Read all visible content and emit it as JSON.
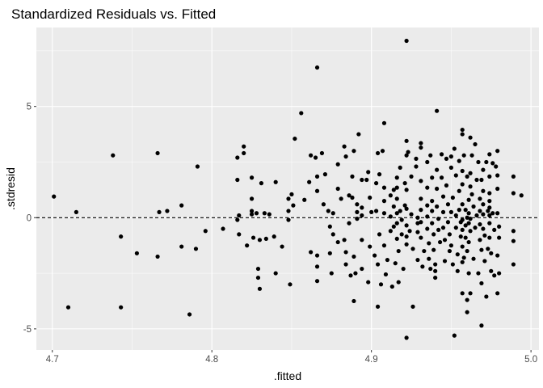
{
  "chart_data": {
    "type": "scatter",
    "title": "Standardized Residuals vs. Fitted",
    "xlabel": ".fitted",
    "ylabel": ".stdresid",
    "xlim": [
      4.69,
      5.005
    ],
    "ylim": [
      -5.95,
      8.55
    ],
    "x_ticks": [
      4.7,
      4.8,
      4.9,
      5.0
    ],
    "x_tick_labels": [
      "4.7",
      "4.8",
      "4.9",
      "5.0"
    ],
    "x_minor_ticks": [
      4.75,
      4.85,
      4.95
    ],
    "y_ticks": [
      -5,
      0,
      5
    ],
    "y_tick_labels": [
      "-5",
      "0",
      "5"
    ],
    "y_minor_ticks": [
      -2.5,
      2.5,
      7.5
    ],
    "reference_line": {
      "y": 0,
      "style": "dashed"
    },
    "grid": true,
    "background": "#ebebeb",
    "point_color": "#000000",
    "points": [
      [
        4.701,
        0.95
      ],
      [
        4.71,
        -4.03
      ],
      [
        4.715,
        0.25
      ],
      [
        4.738,
        2.8
      ],
      [
        4.743,
        -0.85
      ],
      [
        4.743,
        -4.03
      ],
      [
        4.753,
        -1.6
      ],
      [
        4.766,
        -1.75
      ],
      [
        4.766,
        2.9
      ],
      [
        4.767,
        0.25
      ],
      [
        4.772,
        0.3
      ],
      [
        4.781,
        0.55
      ],
      [
        4.781,
        -1.3
      ],
      [
        4.786,
        -4.35
      ],
      [
        4.79,
        -1.4
      ],
      [
        4.791,
        2.3
      ],
      [
        4.796,
        -0.6
      ],
      [
        4.807,
        -0.5
      ],
      [
        4.816,
        2.7
      ],
      [
        4.816,
        1.7
      ],
      [
        4.816,
        -0.1
      ],
      [
        4.817,
        0.1
      ],
      [
        4.817,
        -0.75
      ],
      [
        4.82,
        3.2
      ],
      [
        4.82,
        2.9
      ],
      [
        4.822,
        -1.25
      ],
      [
        4.825,
        1.8
      ],
      [
        4.825,
        0.85
      ],
      [
        4.825,
        0.3
      ],
      [
        4.825,
        0.15
      ],
      [
        4.826,
        -0.9
      ],
      [
        4.828,
        0.2
      ],
      [
        4.829,
        -2.3
      ],
      [
        4.829,
        -2.7
      ],
      [
        4.83,
        -3.2
      ],
      [
        4.83,
        -1.0
      ],
      [
        4.831,
        1.55
      ],
      [
        4.833,
        0.2
      ],
      [
        4.834,
        -0.95
      ],
      [
        4.836,
        0.15
      ],
      [
        4.839,
        -0.85
      ],
      [
        4.84,
        -2.5
      ],
      [
        4.84,
        1.6
      ],
      [
        4.844,
        -1.3
      ],
      [
        4.848,
        0.85
      ],
      [
        4.848,
        0.3
      ],
      [
        4.848,
        -0.1
      ],
      [
        4.849,
        -3.0
      ],
      [
        4.85,
        1.05
      ],
      [
        4.851,
        0.55
      ],
      [
        4.852,
        3.55
      ],
      [
        4.856,
        4.7
      ],
      [
        4.858,
        0.8
      ],
      [
        4.861,
        1.6
      ],
      [
        4.862,
        2.8
      ],
      [
        4.862,
        -1.55
      ],
      [
        4.865,
        2.7
      ],
      [
        4.866,
        6.75
      ],
      [
        4.866,
        1.85
      ],
      [
        4.866,
        1.2
      ],
      [
        4.866,
        -1.7
      ],
      [
        4.866,
        -2.2
      ],
      [
        4.866,
        -2.85
      ],
      [
        4.869,
        2.9
      ],
      [
        4.87,
        0.6
      ],
      [
        4.871,
        1.95
      ],
      [
        4.873,
        0.3
      ],
      [
        4.874,
        -0.4
      ],
      [
        4.874,
        -1.6
      ],
      [
        4.875,
        -2.5
      ],
      [
        4.876,
        0.2
      ],
      [
        4.876,
        -0.75
      ],
      [
        4.879,
        2.4
      ],
      [
        4.879,
        1.3
      ],
      [
        4.879,
        -1.1
      ],
      [
        4.881,
        0.85
      ],
      [
        4.883,
        -1.0
      ],
      [
        4.883,
        3.2
      ],
      [
        4.884,
        2.75
      ],
      [
        4.884,
        -1.55
      ],
      [
        4.884,
        -2.1
      ],
      [
        4.886,
        1.0
      ],
      [
        4.886,
        -0.25
      ],
      [
        4.887,
        -2.6
      ],
      [
        4.888,
        1.85
      ],
      [
        4.888,
        0.9
      ],
      [
        4.889,
        3.0
      ],
      [
        4.889,
        -1.75
      ],
      [
        4.889,
        -3.75
      ],
      [
        4.89,
        -2.5
      ],
      [
        4.891,
        0.6
      ],
      [
        4.891,
        -0.05
      ],
      [
        4.891,
        0.25
      ],
      [
        4.892,
        3.75
      ],
      [
        4.894,
        1.7
      ],
      [
        4.894,
        0.1
      ],
      [
        4.894,
        -1.0
      ],
      [
        4.894,
        -2.3
      ],
      [
        4.894,
        0.45
      ],
      [
        4.897,
        1.7
      ],
      [
        4.898,
        2.05
      ],
      [
        4.898,
        -2.9
      ],
      [
        4.899,
        0.9
      ],
      [
        4.899,
        -1.3
      ],
      [
        4.9,
        0.25
      ],
      [
        4.902,
        -1.7
      ],
      [
        4.903,
        1.55
      ],
      [
        4.903,
        0.3
      ],
      [
        4.904,
        2.9
      ],
      [
        4.904,
        -2.1
      ],
      [
        4.904,
        -4.0
      ],
      [
        4.905,
        1.95
      ],
      [
        4.905,
        -0.75
      ],
      [
        4.906,
        -3.0
      ],
      [
        4.907,
        3.0
      ],
      [
        4.908,
        4.25
      ],
      [
        4.908,
        1.35
      ],
      [
        4.908,
        0.75
      ],
      [
        4.908,
        0.2
      ],
      [
        4.908,
        -1.25
      ],
      [
        4.909,
        -2.55
      ],
      [
        4.91,
        -1.9
      ],
      [
        4.912,
        1.0
      ],
      [
        4.912,
        0.05
      ],
      [
        4.912,
        -0.6
      ],
      [
        4.913,
        -3.1
      ],
      [
        4.914,
        1.25
      ],
      [
        4.914,
        0.5
      ],
      [
        4.914,
        -0.4
      ],
      [
        4.915,
        -2.05
      ],
      [
        4.916,
        1.8
      ],
      [
        4.916,
        1.35
      ],
      [
        4.916,
        0.85
      ],
      [
        4.916,
        0.2
      ],
      [
        4.916,
        -0.25
      ],
      [
        4.916,
        -0.95
      ],
      [
        4.917,
        -1.5
      ],
      [
        4.917,
        -2.9
      ],
      [
        4.918,
        2.25
      ],
      [
        4.918,
        0.3
      ],
      [
        4.919,
        -0.1
      ],
      [
        4.919,
        -0.75
      ],
      [
        4.92,
        -2.3
      ],
      [
        4.921,
        1.55
      ],
      [
        4.921,
        0.55
      ],
      [
        4.922,
        7.95
      ],
      [
        4.922,
        3.45
      ],
      [
        4.922,
        2.8
      ],
      [
        4.922,
        1.25
      ],
      [
        4.922,
        0.4
      ],
      [
        4.922,
        -0.35
      ],
      [
        4.922,
        -0.85
      ],
      [
        4.922,
        -1.2
      ],
      [
        4.922,
        -5.4
      ],
      [
        4.923,
        2.95
      ],
      [
        4.924,
        -0.6
      ],
      [
        4.925,
        1.85
      ],
      [
        4.925,
        0.15
      ],
      [
        4.926,
        -1.4
      ],
      [
        4.926,
        -4.0
      ],
      [
        4.928,
        2.65
      ],
      [
        4.928,
        2.3
      ],
      [
        4.929,
        0.0
      ],
      [
        4.929,
        -0.25
      ],
      [
        4.929,
        -0.65
      ],
      [
        4.929,
        -1.9
      ],
      [
        4.931,
        3.35
      ],
      [
        4.931,
        3.15
      ],
      [
        4.931,
        1.65
      ],
      [
        4.931,
        0.85
      ],
      [
        4.931,
        0.35
      ],
      [
        4.931,
        -0.2
      ],
      [
        4.931,
        -0.9
      ],
      [
        4.932,
        -2.2
      ],
      [
        4.933,
        -1.5
      ],
      [
        4.935,
        2.5
      ],
      [
        4.935,
        1.35
      ],
      [
        4.935,
        0.55
      ],
      [
        4.935,
        0.05
      ],
      [
        4.935,
        -0.5
      ],
      [
        4.936,
        -1.15
      ],
      [
        4.936,
        -1.85
      ],
      [
        4.937,
        -2.3
      ],
      [
        4.937,
        2.8
      ],
      [
        4.938,
        1.8
      ],
      [
        4.938,
        0.75
      ],
      [
        4.938,
        0.3
      ],
      [
        4.938,
        -0.25
      ],
      [
        4.939,
        -0.75
      ],
      [
        4.939,
        -1.45
      ],
      [
        4.94,
        -2.1
      ],
      [
        4.94,
        -2.4
      ],
      [
        4.94,
        -2.7
      ],
      [
        4.941,
        4.8
      ],
      [
        4.941,
        2.15
      ],
      [
        4.941,
        1.3
      ],
      [
        4.941,
        0.5
      ],
      [
        4.942,
        -0.05
      ],
      [
        4.942,
        -0.55
      ],
      [
        4.943,
        -1.1
      ],
      [
        4.944,
        2.85
      ],
      [
        4.944,
        1.8
      ],
      [
        4.945,
        0.95
      ],
      [
        4.945,
        0.25
      ],
      [
        4.945,
        -0.45
      ],
      [
        4.946,
        -1.0
      ],
      [
        4.946,
        -1.95
      ],
      [
        4.947,
        2.65
      ],
      [
        4.947,
        1.45
      ],
      [
        4.948,
        0.6
      ],
      [
        4.948,
        -0.2
      ],
      [
        4.949,
        -0.75
      ],
      [
        4.949,
        -1.5
      ],
      [
        4.95,
        2.75
      ],
      [
        4.95,
        2.25
      ],
      [
        4.95,
        0.25
      ],
      [
        4.95,
        -1.25
      ],
      [
        4.951,
        -2.1
      ],
      [
        4.951,
        0.9
      ],
      [
        4.952,
        3.1
      ],
      [
        4.952,
        -5.3
      ],
      [
        4.953,
        1.9
      ],
      [
        4.953,
        0.1
      ],
      [
        4.953,
        -0.45
      ],
      [
        4.954,
        -1.65
      ],
      [
        4.954,
        -2.4
      ],
      [
        4.955,
        2.55
      ],
      [
        4.955,
        1.2
      ],
      [
        4.955,
        0.35
      ],
      [
        4.956,
        -0.2
      ],
      [
        4.956,
        -0.85
      ],
      [
        4.957,
        3.95
      ],
      [
        4.957,
        3.75
      ],
      [
        4.957,
        2.1
      ],
      [
        4.957,
        1.5
      ],
      [
        4.957,
        0.6
      ],
      [
        4.957,
        -0.1
      ],
      [
        4.957,
        -0.55
      ],
      [
        4.957,
        -1.3
      ],
      [
        4.957,
        -2.0
      ],
      [
        4.957,
        -3.4
      ],
      [
        4.958,
        2.8
      ],
      [
        4.958,
        -1.8
      ],
      [
        4.959,
        0.35
      ],
      [
        4.959,
        -0.35
      ],
      [
        4.959,
        -0.9
      ],
      [
        4.96,
        1.85
      ],
      [
        4.96,
        0.0
      ],
      [
        4.96,
        -1.5
      ],
      [
        4.96,
        -3.7
      ],
      [
        4.96,
        -4.25
      ],
      [
        4.961,
        0.8
      ],
      [
        4.961,
        0.2
      ],
      [
        4.961,
        -0.25
      ],
      [
        4.961,
        -1.1
      ],
      [
        4.961,
        -2.5
      ],
      [
        4.962,
        3.6
      ],
      [
        4.962,
        2.0
      ],
      [
        4.962,
        1.4
      ],
      [
        4.962,
        -0.05
      ],
      [
        4.962,
        -0.6
      ],
      [
        4.962,
        -3.4
      ],
      [
        4.963,
        2.8
      ],
      [
        4.963,
        1.05
      ],
      [
        4.964,
        0.5
      ],
      [
        4.964,
        -1.85
      ],
      [
        4.965,
        3.3
      ],
      [
        4.965,
        -0.45
      ],
      [
        4.966,
        1.7
      ],
      [
        4.966,
        0.1
      ],
      [
        4.967,
        -2.5
      ],
      [
        4.967,
        2.5
      ],
      [
        4.968,
        0.85
      ],
      [
        4.968,
        0.3
      ],
      [
        4.968,
        -0.3
      ],
      [
        4.968,
        -1.0
      ],
      [
        4.969,
        1.7
      ],
      [
        4.969,
        -1.45
      ],
      [
        4.969,
        -4.85
      ],
      [
        4.969,
        -2.95
      ],
      [
        4.97,
        2.15
      ],
      [
        4.97,
        1.2
      ],
      [
        4.97,
        0.6
      ],
      [
        4.97,
        0.15
      ],
      [
        4.97,
        -0.5
      ],
      [
        4.971,
        -0.8
      ],
      [
        4.971,
        -1.95
      ],
      [
        4.972,
        2.5
      ],
      [
        4.972,
        -3.55
      ],
      [
        4.973,
        0.3
      ],
      [
        4.973,
        -1.4
      ],
      [
        4.974,
        2.85
      ],
      [
        4.974,
        1.85
      ],
      [
        4.974,
        1.1
      ],
      [
        4.974,
        0.75
      ],
      [
        4.974,
        0.45
      ],
      [
        4.974,
        0.1
      ],
      [
        4.974,
        -0.25
      ],
      [
        4.974,
        -0.9
      ],
      [
        4.975,
        -1.6
      ],
      [
        4.975,
        -2.4
      ],
      [
        4.976,
        2.45
      ],
      [
        4.976,
        0.2
      ],
      [
        4.977,
        -0.55
      ],
      [
        4.977,
        -2.6
      ],
      [
        4.978,
        2.3
      ],
      [
        4.979,
        3.0
      ],
      [
        4.979,
        1.9
      ],
      [
        4.979,
        1.3
      ],
      [
        4.979,
        0.2
      ],
      [
        4.979,
        -1.7
      ],
      [
        4.979,
        -3.4
      ],
      [
        4.98,
        -0.4
      ],
      [
        4.98,
        -0.9
      ],
      [
        4.98,
        -2.5
      ],
      [
        4.989,
        1.85
      ],
      [
        4.989,
        1.1
      ],
      [
        4.989,
        -0.6
      ],
      [
        4.989,
        -1.05
      ],
      [
        4.989,
        -2.1
      ],
      [
        4.994,
        1.0
      ]
    ]
  }
}
